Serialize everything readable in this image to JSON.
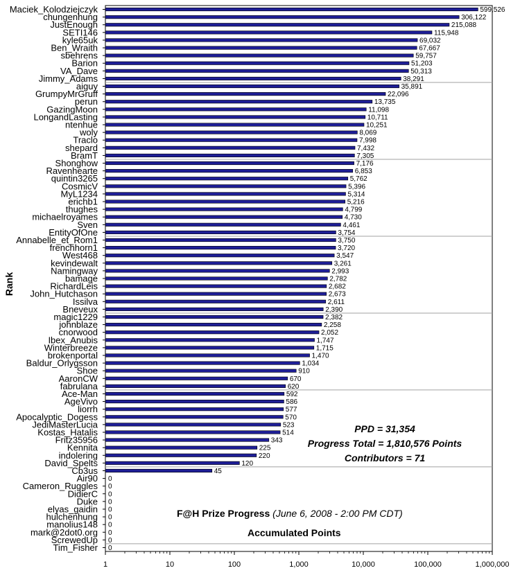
{
  "chart_data": {
    "type": "bar",
    "orientation": "horizontal",
    "xscale": "log",
    "xlim": [
      1,
      1000000
    ],
    "xticks": [
      "1",
      "10",
      "100",
      "1,000",
      "10,000",
      "100,000",
      "1,000,000"
    ],
    "xlabel": "Accumulated Points",
    "ylabel": "Rank",
    "title": "F@H Prize Progress",
    "subtitle": "(June 6, 2008 - 2:00 PM CDT)",
    "bar_color": "#1e1e96",
    "categories": [
      "Maciek_Kolodziejczyk",
      "chungenhung",
      "JustEnough",
      "SETI146",
      "kyle65uk",
      "Ben_Wraith",
      "sbehrens",
      "Barion",
      "VA_Dave",
      "Jimmy_Adams",
      "aiguy",
      "GrumpyMrGruff",
      "perun",
      "GazingMoon",
      "LongandLasting",
      "ntenhue",
      "woly",
      "Traclo",
      "shepard",
      "BramT",
      "Shonghow",
      "Ravenhearte",
      "quintin3265",
      "CosmicV",
      "MyL1234",
      "erichb1",
      "thughes",
      "michaelroyames",
      "Sven",
      "EntityOfOne",
      "Annabelle_et_Rom1",
      "frenchhorn1",
      "West468",
      "kevindewalt",
      "Namingway",
      "bamage",
      "RichardLeis",
      "John_Hutchason",
      "Issilva",
      "Bneveux",
      "magic1229",
      "johnblaze",
      "cnorwood",
      "Ibex_Anubis",
      "Winterbreeze",
      "brokenportal",
      "Baldur_Orlygsson",
      "Shoe",
      "AaronCW",
      "fabrulana",
      "Ace-Man",
      "AgeVivo",
      "liorrh",
      "Apocalyptic_Dogess",
      "JediMasterLucia",
      "Kostas_Hatalis",
      "Fritz35956",
      "Kennita",
      "indolering",
      "David_Spelts",
      "Cb3us",
      "Air90",
      "Cameron_Ruggles",
      "DidierC",
      "Duke",
      "elyas_gaidin",
      "hulchenhung",
      "manolius148",
      "mark@2dot0.org",
      "ScrewedUp",
      "Tim_Fisher"
    ],
    "values": [
      599526,
      306122,
      215088,
      115948,
      69032,
      67667,
      59757,
      51203,
      50313,
      38291,
      35891,
      22096,
      13735,
      11098,
      10711,
      10251,
      8069,
      7998,
      7432,
      7305,
      7176,
      6853,
      5762,
      5396,
      5314,
      5216,
      4799,
      4730,
      4461,
      3754,
      3750,
      3720,
      3547,
      3261,
      2993,
      2782,
      2682,
      2673,
      2611,
      2390,
      2382,
      2258,
      2052,
      1747,
      1715,
      1470,
      1034,
      910,
      670,
      620,
      592,
      586,
      577,
      570,
      523,
      514,
      343,
      225,
      220,
      120,
      45,
      0,
      0,
      0,
      0,
      0,
      0,
      0,
      0,
      0,
      0
    ],
    "value_labels": [
      "599,526",
      "306,122",
      "215,088",
      "115,948",
      "69,032",
      "67,667",
      "59,757",
      "51,203",
      "50,313",
      "38,291",
      "35,891",
      "22,096",
      "13,735",
      "11,098",
      "10,711",
      "10,251",
      "8,069",
      "7,998",
      "7,432",
      "7,305",
      "7,176",
      "6,853",
      "5,762",
      "5,396",
      "5,314",
      "5,216",
      "4,799",
      "4,730",
      "4,461",
      "3,754",
      "3,750",
      "3,720",
      "3,547",
      "3,261",
      "2,993",
      "2,782",
      "2,682",
      "2,673",
      "2,611",
      "2,390",
      "2,382",
      "2,258",
      "2,052",
      "1,747",
      "1,715",
      "1,470",
      "1,034",
      "910",
      "670",
      "620",
      "592",
      "586",
      "577",
      "570",
      "523",
      "514",
      "343",
      "225",
      "220",
      "120",
      "45",
      "0",
      "0",
      "0",
      "0",
      "0",
      "0",
      "0",
      "0",
      "0",
      "0"
    ],
    "annotations": [
      "PPD = 31,354",
      "Progress Total = 1,810,576 Points",
      "Contributors = 71"
    ],
    "grid": "horizontal separators every 10 ranks"
  }
}
